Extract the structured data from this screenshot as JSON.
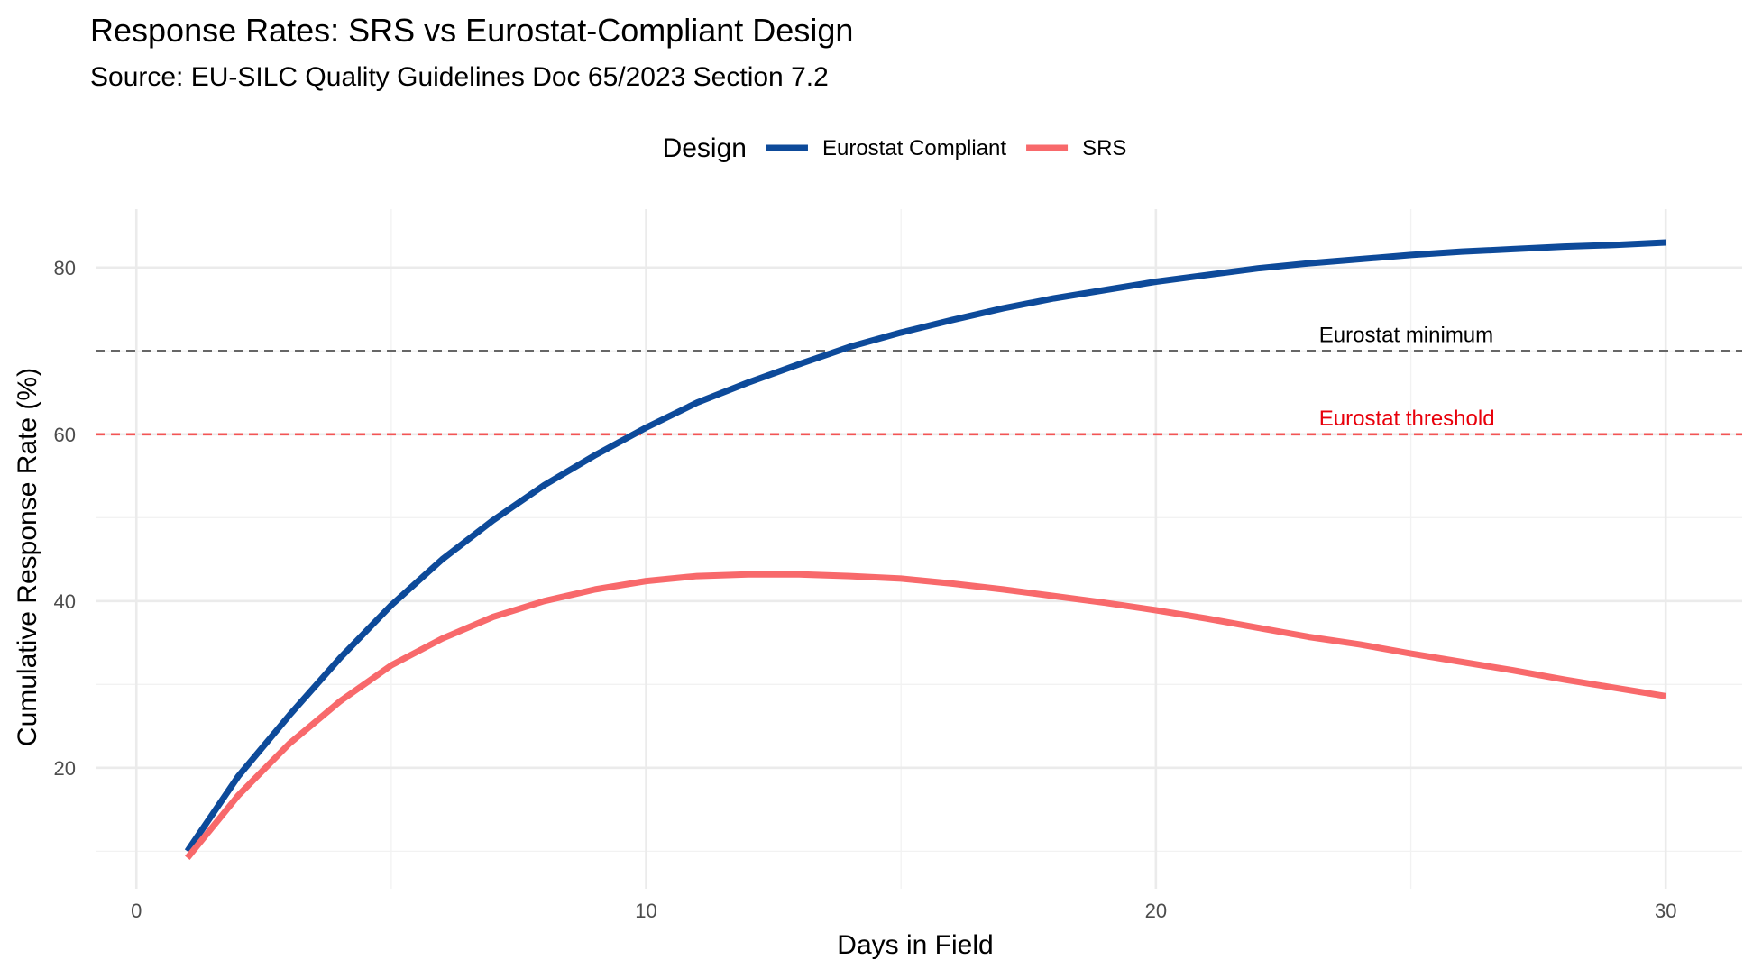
{
  "chart_data": {
    "type": "line",
    "title": "Response Rates: SRS vs Eurostat-Compliant Design",
    "subtitle": "Source: EU-SILC Quality Guidelines Doc 65/2023 Section 7.2",
    "xlabel": "Days in Field",
    "ylabel": "Cumulative Response Rate (%)",
    "xlim": [
      -0.8,
      31.5
    ],
    "ylim": [
      5.5,
      87
    ],
    "x_ticks": [
      0,
      10,
      20,
      30
    ],
    "x_tick_labels": [
      "0",
      "10",
      "20",
      "30"
    ],
    "y_ticks": [
      20,
      40,
      60,
      80
    ],
    "y_tick_labels": [
      "20",
      "40",
      "60",
      "80"
    ],
    "grid": true,
    "legend": {
      "title": "Design",
      "position": "top",
      "entries": [
        {
          "label": "Eurostat Compliant",
          "color": "#0D4A9A"
        },
        {
          "label": "SRS",
          "color": "#F8696B"
        }
      ]
    },
    "series": [
      {
        "name": "Eurostat Compliant",
        "color": "#0D4A9A",
        "x": [
          1,
          2,
          3,
          4,
          5,
          6,
          7,
          8,
          9,
          10,
          11,
          12,
          13,
          14,
          15,
          16,
          17,
          18,
          19,
          20,
          21,
          22,
          23,
          24,
          25,
          26,
          27,
          28,
          29,
          30
        ],
        "values": [
          10.0,
          19.0,
          26.3,
          33.2,
          39.5,
          45.0,
          49.7,
          53.9,
          57.5,
          60.8,
          63.8,
          66.2,
          68.4,
          70.5,
          72.2,
          73.7,
          75.1,
          76.3,
          77.3,
          78.3,
          79.1,
          79.9,
          80.5,
          81.0,
          81.5,
          81.9,
          82.2,
          82.5,
          82.7,
          83.0
        ]
      },
      {
        "name": "SRS",
        "color": "#F8696B",
        "x": [
          1,
          2,
          3,
          4,
          5,
          6,
          7,
          8,
          9,
          10,
          11,
          12,
          13,
          14,
          15,
          16,
          17,
          18,
          19,
          20,
          21,
          22,
          23,
          24,
          25,
          26,
          27,
          28,
          29,
          30
        ],
        "values": [
          9.2,
          16.7,
          22.9,
          28.0,
          32.3,
          35.5,
          38.1,
          40.0,
          41.4,
          42.4,
          43.0,
          43.2,
          43.2,
          43.0,
          42.7,
          42.1,
          41.4,
          40.6,
          39.8,
          38.9,
          37.9,
          36.8,
          35.7,
          34.8,
          33.7,
          32.7,
          31.7,
          30.6,
          29.6,
          28.6
        ]
      }
    ],
    "reference_lines": [
      {
        "y": 70,
        "label": "Eurostat minimum",
        "color": "#666666",
        "label_color": "#000000",
        "label_x": 23.2
      },
      {
        "y": 60,
        "label": "Eurostat threshold",
        "color": "#F25555",
        "label_color": "#E8000B",
        "label_x": 23.2
      }
    ]
  }
}
